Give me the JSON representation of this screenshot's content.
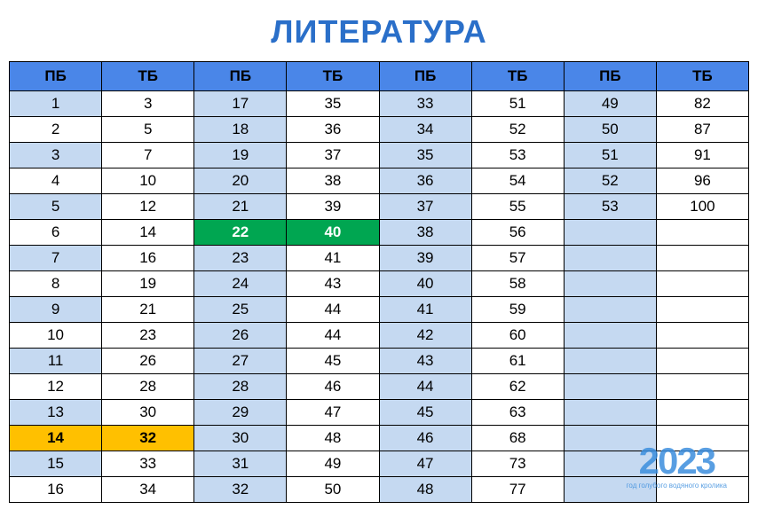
{
  "title": "ЛИТЕРАТУРА",
  "headers": [
    "ПБ",
    "ТБ",
    "ПБ",
    "ТБ",
    "ПБ",
    "ТБ",
    "ПБ",
    "ТБ"
  ],
  "header_bg": "#4a86e8",
  "colors": {
    "blue": "#c5d9f1",
    "white": "#ffffff",
    "green": "#00a651",
    "orange": "#ffc000",
    "title": "#2a6fc9",
    "border": "#000000"
  },
  "rows": [
    [
      {
        "v": "1",
        "c": "blue"
      },
      {
        "v": "3",
        "c": "white"
      },
      {
        "v": "17",
        "c": "blue"
      },
      {
        "v": "35",
        "c": "white"
      },
      {
        "v": "33",
        "c": "blue"
      },
      {
        "v": "51",
        "c": "white"
      },
      {
        "v": "49",
        "c": "blue"
      },
      {
        "v": "82",
        "c": "white"
      }
    ],
    [
      {
        "v": "2",
        "c": "white"
      },
      {
        "v": "5",
        "c": "white"
      },
      {
        "v": "18",
        "c": "blue"
      },
      {
        "v": "36",
        "c": "white"
      },
      {
        "v": "34",
        "c": "blue"
      },
      {
        "v": "52",
        "c": "white"
      },
      {
        "v": "50",
        "c": "blue"
      },
      {
        "v": "87",
        "c": "white"
      }
    ],
    [
      {
        "v": "3",
        "c": "blue"
      },
      {
        "v": "7",
        "c": "white"
      },
      {
        "v": "19",
        "c": "blue"
      },
      {
        "v": "37",
        "c": "white"
      },
      {
        "v": "35",
        "c": "blue"
      },
      {
        "v": "53",
        "c": "white"
      },
      {
        "v": "51",
        "c": "blue"
      },
      {
        "v": "91",
        "c": "white"
      }
    ],
    [
      {
        "v": "4",
        "c": "white"
      },
      {
        "v": "10",
        "c": "white"
      },
      {
        "v": "20",
        "c": "blue"
      },
      {
        "v": "38",
        "c": "white"
      },
      {
        "v": "36",
        "c": "blue"
      },
      {
        "v": "54",
        "c": "white"
      },
      {
        "v": "52",
        "c": "blue"
      },
      {
        "v": "96",
        "c": "white"
      }
    ],
    [
      {
        "v": "5",
        "c": "blue"
      },
      {
        "v": "12",
        "c": "white"
      },
      {
        "v": "21",
        "c": "blue"
      },
      {
        "v": "39",
        "c": "white"
      },
      {
        "v": "37",
        "c": "blue"
      },
      {
        "v": "55",
        "c": "white"
      },
      {
        "v": "53",
        "c": "blue"
      },
      {
        "v": "100",
        "c": "white"
      }
    ],
    [
      {
        "v": "6",
        "c": "white"
      },
      {
        "v": "14",
        "c": "white"
      },
      {
        "v": "22",
        "c": "green"
      },
      {
        "v": "40",
        "c": "green"
      },
      {
        "v": "38",
        "c": "blue"
      },
      {
        "v": "56",
        "c": "white"
      },
      {
        "v": "",
        "c": "blue"
      },
      {
        "v": "",
        "c": "white"
      }
    ],
    [
      {
        "v": "7",
        "c": "blue"
      },
      {
        "v": "16",
        "c": "white"
      },
      {
        "v": "23",
        "c": "blue"
      },
      {
        "v": "41",
        "c": "white"
      },
      {
        "v": "39",
        "c": "blue"
      },
      {
        "v": "57",
        "c": "white"
      },
      {
        "v": "",
        "c": "blue"
      },
      {
        "v": "",
        "c": "white"
      }
    ],
    [
      {
        "v": "8",
        "c": "white"
      },
      {
        "v": "19",
        "c": "white"
      },
      {
        "v": "24",
        "c": "blue"
      },
      {
        "v": "43",
        "c": "white"
      },
      {
        "v": "40",
        "c": "blue"
      },
      {
        "v": "58",
        "c": "white"
      },
      {
        "v": "",
        "c": "blue"
      },
      {
        "v": "",
        "c": "white"
      }
    ],
    [
      {
        "v": "9",
        "c": "blue"
      },
      {
        "v": "21",
        "c": "white"
      },
      {
        "v": "25",
        "c": "blue"
      },
      {
        "v": "44",
        "c": "white"
      },
      {
        "v": "41",
        "c": "blue"
      },
      {
        "v": "59",
        "c": "white"
      },
      {
        "v": "",
        "c": "blue"
      },
      {
        "v": "",
        "c": "white"
      }
    ],
    [
      {
        "v": "10",
        "c": "white"
      },
      {
        "v": "23",
        "c": "white"
      },
      {
        "v": "26",
        "c": "blue"
      },
      {
        "v": "44",
        "c": "white"
      },
      {
        "v": "42",
        "c": "blue"
      },
      {
        "v": "60",
        "c": "white"
      },
      {
        "v": "",
        "c": "blue"
      },
      {
        "v": "",
        "c": "white"
      }
    ],
    [
      {
        "v": "11",
        "c": "blue"
      },
      {
        "v": "26",
        "c": "white"
      },
      {
        "v": "27",
        "c": "blue"
      },
      {
        "v": "45",
        "c": "white"
      },
      {
        "v": "43",
        "c": "blue"
      },
      {
        "v": "61",
        "c": "white"
      },
      {
        "v": "",
        "c": "blue"
      },
      {
        "v": "",
        "c": "white"
      }
    ],
    [
      {
        "v": "12",
        "c": "white"
      },
      {
        "v": "28",
        "c": "white"
      },
      {
        "v": "28",
        "c": "blue"
      },
      {
        "v": "46",
        "c": "white"
      },
      {
        "v": "44",
        "c": "blue"
      },
      {
        "v": "62",
        "c": "white"
      },
      {
        "v": "",
        "c": "blue"
      },
      {
        "v": "",
        "c": "white"
      }
    ],
    [
      {
        "v": "13",
        "c": "blue"
      },
      {
        "v": "30",
        "c": "white"
      },
      {
        "v": "29",
        "c": "blue"
      },
      {
        "v": "47",
        "c": "white"
      },
      {
        "v": "45",
        "c": "blue"
      },
      {
        "v": "63",
        "c": "white"
      },
      {
        "v": "",
        "c": "blue"
      },
      {
        "v": "",
        "c": "white"
      }
    ],
    [
      {
        "v": "14",
        "c": "orange"
      },
      {
        "v": "32",
        "c": "orange"
      },
      {
        "v": "30",
        "c": "blue"
      },
      {
        "v": "48",
        "c": "white"
      },
      {
        "v": "46",
        "c": "blue"
      },
      {
        "v": "68",
        "c": "white"
      },
      {
        "v": "",
        "c": "blue"
      },
      {
        "v": "",
        "c": "white"
      }
    ],
    [
      {
        "v": "15",
        "c": "blue"
      },
      {
        "v": "33",
        "c": "white"
      },
      {
        "v": "31",
        "c": "blue"
      },
      {
        "v": "49",
        "c": "white"
      },
      {
        "v": "47",
        "c": "blue"
      },
      {
        "v": "73",
        "c": "white"
      },
      {
        "v": "",
        "c": "blue"
      },
      {
        "v": "",
        "c": "white"
      }
    ],
    [
      {
        "v": "16",
        "c": "white"
      },
      {
        "v": "34",
        "c": "white"
      },
      {
        "v": "32",
        "c": "blue"
      },
      {
        "v": "50",
        "c": "white"
      },
      {
        "v": "48",
        "c": "blue"
      },
      {
        "v": "77",
        "c": "white"
      },
      {
        "v": "",
        "c": "blue"
      },
      {
        "v": "",
        "c": "white"
      }
    ]
  ],
  "watermark": {
    "year": "2023",
    "sub": "год голубого водяного кролика",
    "color": "#3b8ede"
  }
}
